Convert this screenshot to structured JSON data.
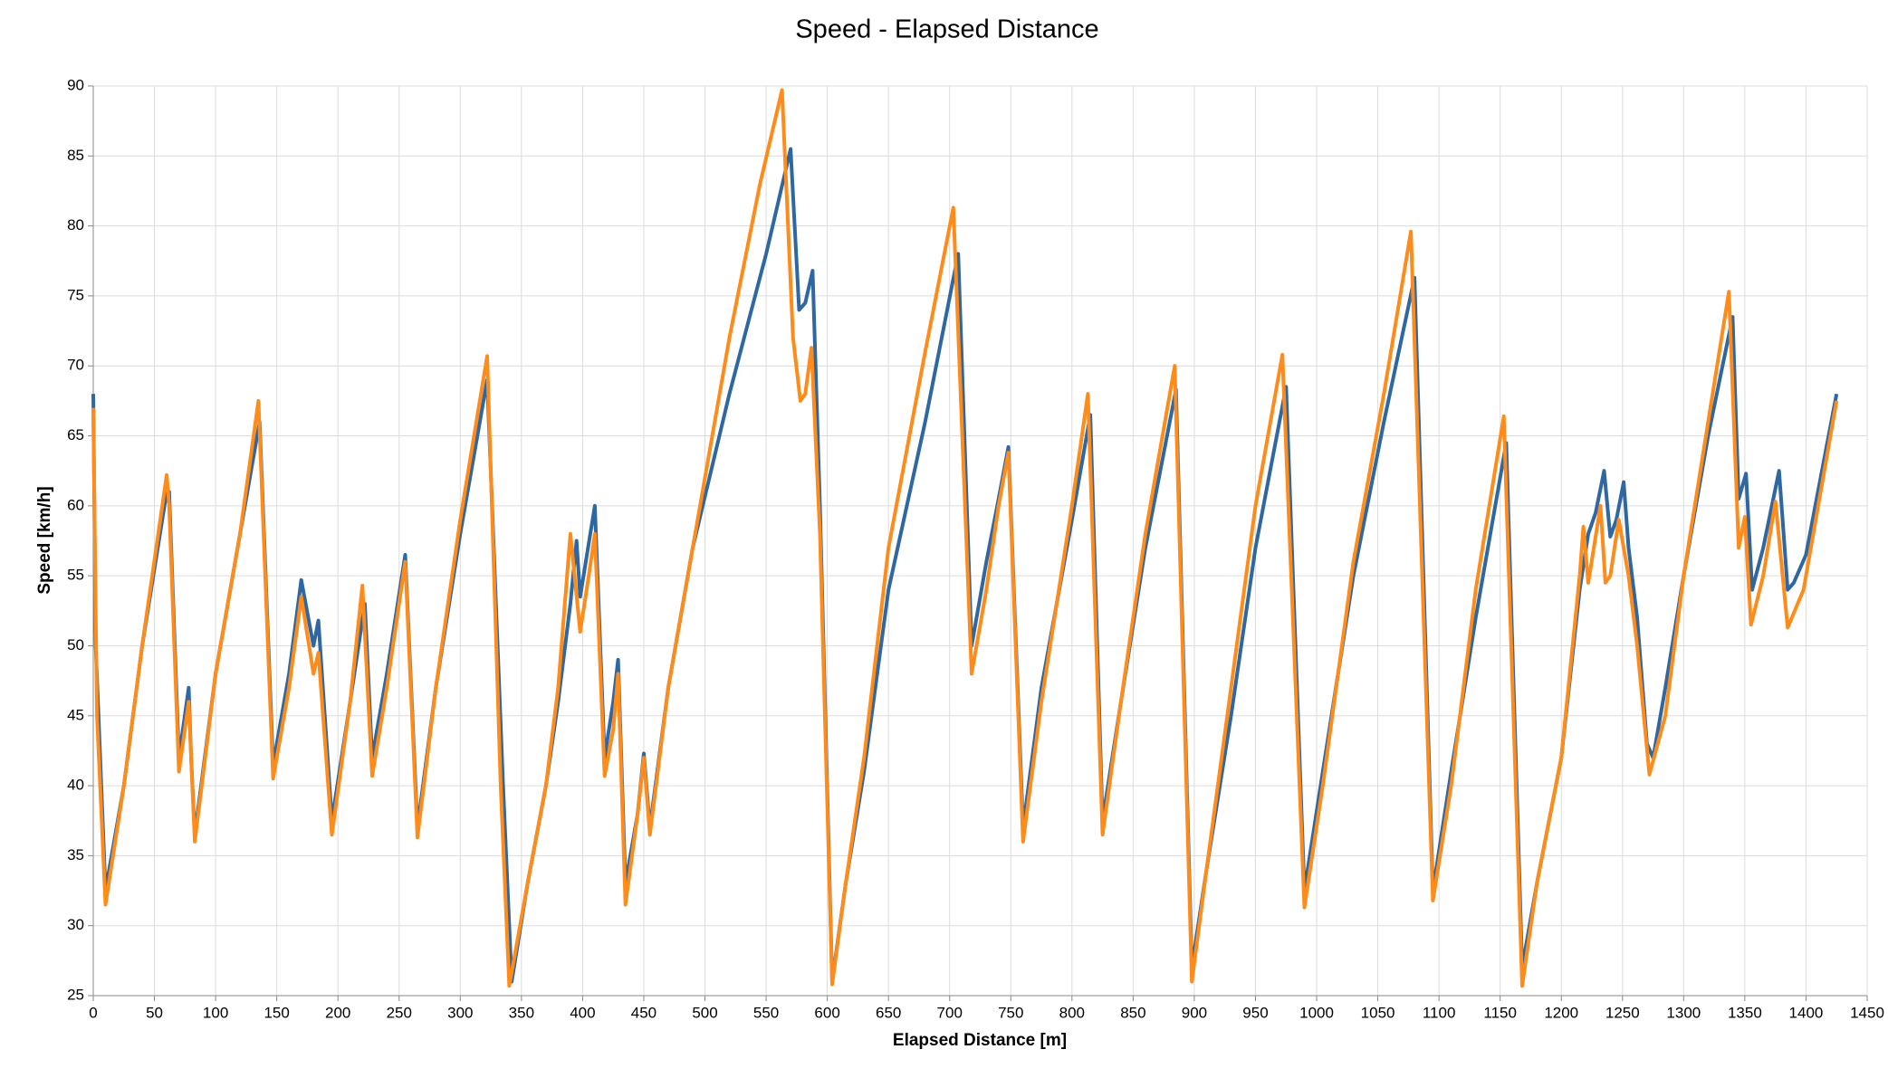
{
  "chart_data": {
    "type": "line",
    "title": "Speed - Elapsed Distance",
    "x_label": "Elapsed Distance [m]",
    "y_label": "Speed [km/h]",
    "xlim": [
      0,
      1450
    ],
    "xticks": [
      0,
      50,
      100,
      150,
      200,
      250,
      300,
      350,
      400,
      450,
      500,
      550,
      600,
      650,
      700,
      750,
      800,
      850,
      900,
      950,
      1000,
      1050,
      1100,
      1150,
      1200,
      1250,
      1300,
      1350,
      1400,
      1450
    ],
    "ylim": [
      25,
      90
    ],
    "yticks": [
      25,
      30,
      35,
      40,
      45,
      50,
      55,
      60,
      65,
      70,
      75,
      80,
      85,
      90
    ],
    "grid": true,
    "series": [
      {
        "color": "#2f67a3",
        "x": [
          0,
          2,
          10,
          25,
          40,
          60,
          62,
          70,
          78,
          80,
          83,
          100,
          120,
          136,
          147,
          160,
          170,
          180,
          184,
          195,
          210,
          222,
          228,
          240,
          255,
          265,
          280,
          300,
          322,
          335,
          342,
          355,
          370,
          380,
          390,
          395,
          398,
          410,
          418,
          425,
          429,
          435,
          445,
          450,
          455,
          470,
          490,
          520,
          550,
          570,
          577,
          582,
          588,
          594,
          604,
          615,
          630,
          650,
          680,
          707,
          718,
          730,
          740,
          748,
          760,
          775,
          800,
          815,
          825,
          840,
          860,
          885,
          898,
          910,
          930,
          950,
          975,
          990,
          1005,
          1030,
          1055,
          1080,
          1095,
          1110,
          1130,
          1155,
          1168,
          1180,
          1200,
          1215,
          1222,
          1228,
          1235,
          1240,
          1245,
          1251,
          1255,
          1262,
          1270,
          1275,
          1285,
          1300,
          1320,
          1340,
          1345,
          1351,
          1356,
          1365,
          1378,
          1385,
          1390,
          1400,
          1425
        ],
        "values": [
          68,
          50,
          32.5,
          40,
          50,
          61,
          61,
          42,
          47,
          42,
          36.5,
          48,
          58,
          66,
          41.5,
          48,
          54.7,
          50,
          51.8,
          37.5,
          46,
          53,
          42,
          48,
          56.5,
          37,
          47,
          58,
          69,
          40,
          26,
          33,
          40,
          46,
          53,
          57.5,
          53.5,
          60,
          42,
          46,
          49,
          33,
          38,
          42.3,
          37,
          47,
          57,
          68,
          78,
          85.5,
          74,
          74.5,
          76.8,
          60,
          26,
          33,
          41,
          54,
          66,
          78,
          50,
          56,
          60.5,
          64.2,
          37,
          47,
          59,
          66.5,
          37.5,
          46,
          57,
          68.3,
          27,
          34,
          45,
          57,
          68.5,
          32.5,
          41,
          55,
          66,
          76.3,
          32.5,
          41,
          52,
          64.5,
          27,
          33,
          42,
          54,
          58,
          59.5,
          62.5,
          57.8,
          59,
          61.7,
          57,
          52,
          43,
          42,
          47,
          55,
          65,
          73.5,
          60.5,
          62.3,
          54,
          57,
          62.5,
          54,
          54.5,
          56.5,
          68
        ]
      },
      {
        "color": "#ff8c1a",
        "x": [
          0,
          3,
          10,
          25,
          40,
          60,
          62,
          70,
          78,
          80,
          83,
          100,
          120,
          135,
          147,
          160,
          170,
          180,
          184,
          195,
          210,
          220,
          228,
          240,
          255,
          265,
          280,
          300,
          322,
          333,
          340,
          355,
          370,
          380,
          390,
          398,
          405,
          410,
          418,
          425,
          429,
          435,
          445,
          450,
          455,
          470,
          490,
          520,
          545,
          563,
          572,
          578,
          582,
          587,
          594,
          604,
          615,
          630,
          650,
          680,
          703,
          718,
          730,
          740,
          748,
          760,
          775,
          800,
          813,
          825,
          840,
          860,
          884,
          898,
          910,
          930,
          950,
          972,
          990,
          1005,
          1030,
          1055,
          1077,
          1095,
          1110,
          1130,
          1153,
          1168,
          1180,
          1200,
          1215,
          1218,
          1222,
          1232,
          1236,
          1240,
          1247,
          1255,
          1262,
          1272,
          1285,
          1300,
          1320,
          1337,
          1345,
          1350,
          1355,
          1365,
          1375,
          1385,
          1398,
          1425
        ],
        "values": [
          67,
          45,
          31.5,
          40,
          50,
          62.2,
          60,
          41,
          46,
          42,
          36,
          48,
          58,
          67.5,
          40.5,
          47,
          53.5,
          48,
          49.5,
          36.5,
          46,
          54.3,
          40.7,
          47,
          56,
          36.3,
          47,
          59,
          70.7,
          40,
          25.7,
          33,
          40,
          47,
          58,
          51,
          55,
          58,
          40.7,
          44,
          48,
          31.5,
          38,
          42,
          36.5,
          47,
          57,
          72,
          83,
          89.7,
          72,
          67.5,
          68,
          71.3,
          58,
          25.8,
          33,
          42,
          57,
          71,
          81.3,
          48,
          54,
          60,
          63.8,
          36,
          46,
          60,
          68,
          36.5,
          46,
          58,
          70,
          26,
          34,
          47,
          60,
          70.8,
          31.3,
          40,
          56,
          68,
          79.6,
          31.8,
          40,
          54,
          66.4,
          25.7,
          33,
          42,
          55,
          58.5,
          54.5,
          60,
          54.5,
          55,
          59,
          55,
          50,
          40.8,
          45,
          55,
          66,
          75.3,
          57,
          59.2,
          51.5,
          55,
          60.3,
          51.3,
          54,
          67.5
        ]
      }
    ]
  }
}
